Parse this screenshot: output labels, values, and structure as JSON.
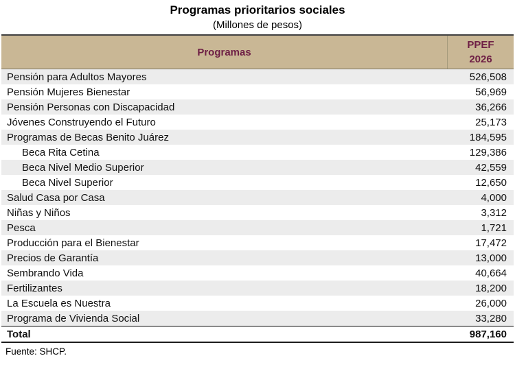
{
  "page": {
    "title": "Programas prioritarios sociales",
    "subtitle": "(Millones de pesos)"
  },
  "table": {
    "header": {
      "programs_label": "Programas",
      "ppef_line1": "PPEF",
      "ppef_line2": "2026"
    },
    "rows": [
      {
        "label": "Pensión para Adultos Mayores",
        "value": "526,508",
        "indent": false,
        "is_total": false
      },
      {
        "label": "Pensión Mujeres Bienestar",
        "value": "56,969",
        "indent": false,
        "is_total": false
      },
      {
        "label": "Pensión Personas con Discapacidad",
        "value": "36,266",
        "indent": false,
        "is_total": false
      },
      {
        "label": "Jóvenes Construyendo el Futuro",
        "value": "25,173",
        "indent": false,
        "is_total": false
      },
      {
        "label": "Programas de Becas Benito Juárez",
        "value": "184,595",
        "indent": false,
        "is_total": false
      },
      {
        "label": "Beca Rita Cetina",
        "value": "129,386",
        "indent": true,
        "is_total": false
      },
      {
        "label": "Beca Nivel Medio Superior",
        "value": "42,559",
        "indent": true,
        "is_total": false
      },
      {
        "label": "Beca Nivel Superior",
        "value": "12,650",
        "indent": true,
        "is_total": false
      },
      {
        "label": "Salud Casa por Casa",
        "value": "4,000",
        "indent": false,
        "is_total": false
      },
      {
        "label": "Niñas y Niños",
        "value": "3,312",
        "indent": false,
        "is_total": false
      },
      {
        "label": "Pesca",
        "value": "1,721",
        "indent": false,
        "is_total": false
      },
      {
        "label": "Producción para el Bienestar",
        "value": "17,472",
        "indent": false,
        "is_total": false
      },
      {
        "label": "Precios de Garantía",
        "value": "13,000",
        "indent": false,
        "is_total": false
      },
      {
        "label": "Sembrando Vida",
        "value": "40,664",
        "indent": false,
        "is_total": false
      },
      {
        "label": "Fertilizantes",
        "value": "18,200",
        "indent": false,
        "is_total": false
      },
      {
        "label": "La Escuela es Nuestra",
        "value": "26,000",
        "indent": false,
        "is_total": false
      },
      {
        "label": "Programa de Vivienda Social",
        "value": "33,280",
        "indent": false,
        "is_total": false
      },
      {
        "label": "Total",
        "value": "987,160",
        "indent": false,
        "is_total": true
      }
    ]
  },
  "footer": {
    "source": "Fuente: SHCP."
  },
  "colors": {
    "header_bg": "#C9B795",
    "header_text": "#6E1F45",
    "row_alt": "#ECECEC",
    "table_top_border": "#404040",
    "table_bottom_border": "#1C1C1C"
  }
}
